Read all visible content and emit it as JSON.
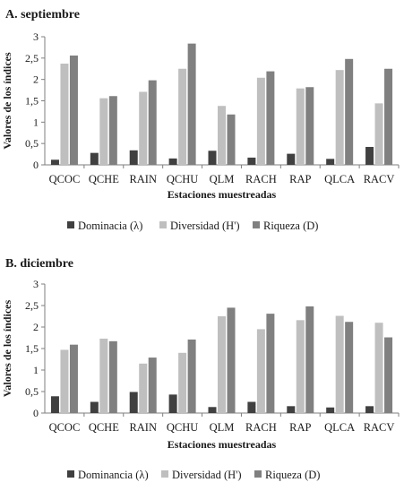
{
  "chart_data": [
    {
      "type": "bar",
      "title": "A. septiembre",
      "xlabel": "Estaciones muestreadas",
      "ylabel": "Valores de los índices",
      "ylim": [
        0,
        3
      ],
      "yticks": [
        "0",
        "0,5",
        "1",
        "1,5",
        "2",
        "2,5",
        "3"
      ],
      "categories": [
        "QCOC",
        "QCHE",
        "RAIN",
        "QCHU",
        "QLM",
        "RACH",
        "RAP",
        "QLCA",
        "RACV"
      ],
      "grid": false,
      "legend": "bottom",
      "series": [
        {
          "name": "Dominacia (λ)",
          "color": "#404040",
          "values": [
            0.12,
            0.28,
            0.34,
            0.15,
            0.33,
            0.17,
            0.26,
            0.14,
            0.42
          ]
        },
        {
          "name": "Diversidad (H')",
          "color": "#bfbfbf",
          "values": [
            2.37,
            1.56,
            1.71,
            2.25,
            1.38,
            2.04,
            1.79,
            2.22,
            1.44
          ]
        },
        {
          "name": "Riqueza (D)",
          "color": "#808080",
          "values": [
            2.56,
            1.61,
            1.98,
            2.84,
            1.18,
            2.19,
            1.82,
            2.48,
            2.25
          ]
        }
      ]
    },
    {
      "type": "bar",
      "title": "B. diciembre",
      "xlabel": "Estaciones muestreadas",
      "ylabel": "Valores de los índices",
      "ylim": [
        0,
        3
      ],
      "yticks": [
        "0",
        "0,5",
        "1",
        "1,5",
        "2",
        "2,5",
        "3"
      ],
      "categories": [
        "QCOC",
        "QCHE",
        "RAIN",
        "QCHU",
        "QLM",
        "RACH",
        "RAP",
        "QLCA",
        "RACV"
      ],
      "grid": false,
      "legend": "bottom",
      "series": [
        {
          "name": "Dominancia (λ)",
          "color": "#404040",
          "values": [
            0.39,
            0.26,
            0.49,
            0.43,
            0.14,
            0.26,
            0.16,
            0.13,
            0.16
          ]
        },
        {
          "name": "Diversidad (H')",
          "color": "#bfbfbf",
          "values": [
            1.47,
            1.73,
            1.15,
            1.4,
            2.25,
            1.95,
            2.16,
            2.26,
            2.1
          ]
        },
        {
          "name": "Riqueza (D)",
          "color": "#808080",
          "values": [
            1.59,
            1.67,
            1.29,
            1.71,
            2.45,
            2.31,
            2.48,
            2.12,
            1.76
          ]
        }
      ]
    }
  ]
}
